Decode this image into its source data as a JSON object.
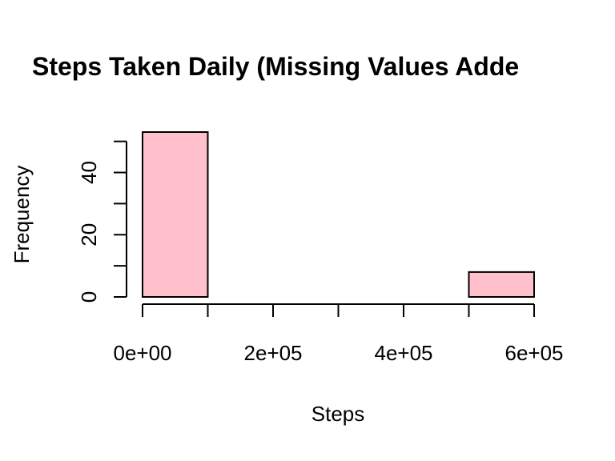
{
  "chart_data": {
    "type": "bar",
    "title": "Steps Taken Daily (Missing Values Adde",
    "xlabel": "Steps",
    "ylabel": "Frequency",
    "bins": [
      {
        "from": 0,
        "to": 100000,
        "value": 53
      },
      {
        "from": 100000,
        "to": 200000,
        "value": 0
      },
      {
        "from": 200000,
        "to": 300000,
        "value": 0
      },
      {
        "from": 300000,
        "to": 400000,
        "value": 0
      },
      {
        "from": 400000,
        "to": 500000,
        "value": 0
      },
      {
        "from": 500000,
        "to": 600000,
        "value": 8
      }
    ],
    "xlim": [
      0,
      600000
    ],
    "ylim": [
      0,
      53
    ],
    "x_ticks": [
      0,
      100000,
      200000,
      300000,
      400000,
      500000,
      600000
    ],
    "x_tick_labels": [
      {
        "value": 0,
        "label": "0e+00"
      },
      {
        "value": 200000,
        "label": "2e+05"
      },
      {
        "value": 400000,
        "label": "4e+05"
      },
      {
        "value": 600000,
        "label": "6e+05"
      }
    ],
    "y_ticks": [
      0,
      10,
      20,
      30,
      40,
      50
    ],
    "y_tick_labels": [
      {
        "value": 0,
        "label": "0"
      },
      {
        "value": 20,
        "label": "20"
      },
      {
        "value": 40,
        "label": "40"
      }
    ],
    "bar_color": "#FFC0CB",
    "bar_border_color": "#000000",
    "grid": false
  }
}
